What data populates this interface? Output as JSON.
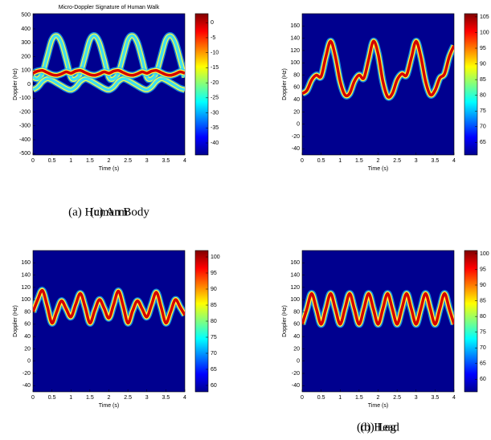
{
  "chart_data": [
    {
      "type": "spectrogram",
      "title": "Micro-Doppler Signature of Human Walk",
      "xlabel": "Time (s)",
      "ylabel": "Doppler (Hz)",
      "caption": "(a) Human Body",
      "xlim": [
        0,
        4
      ],
      "xticks": [
        0,
        0.5,
        1,
        1.5,
        2,
        2.5,
        3,
        3.5,
        4
      ],
      "ylim": [
        -510,
        510
      ],
      "yticks": [
        -500,
        -400,
        -300,
        -200,
        -100,
        0,
        100,
        200,
        300,
        400,
        500
      ],
      "clim": [
        -44,
        3
      ],
      "cticks": [
        0,
        -5,
        -10,
        -15,
        -20,
        -25,
        -30,
        -35,
        -40
      ],
      "x": [
        0,
        0.125,
        0.25,
        0.375,
        0.5,
        0.625,
        0.75,
        0.875,
        1,
        1.125,
        1.25,
        1.375,
        1.5,
        1.625,
        1.75,
        1.875,
        2,
        2.125,
        2.25,
        2.375,
        2.5,
        2.625,
        2.75,
        2.875,
        3,
        3.125,
        3.25,
        3.375,
        3.5,
        3.625,
        3.75,
        3.875,
        4
      ],
      "series": [
        {
          "color": "#40e0f0",
          "values": [
            50,
            40,
            80,
            200,
            320,
            350,
            300,
            180,
            50,
            40,
            80,
            200,
            320,
            350,
            300,
            180,
            50,
            40,
            80,
            200,
            320,
            350,
            300,
            180,
            50,
            40,
            80,
            200,
            320,
            350,
            300,
            180,
            50
          ]
        },
        {
          "color": "#40e0f0",
          "values": [
            -40,
            -20,
            20,
            40,
            30,
            10,
            -10,
            -30,
            -40,
            -20,
            20,
            40,
            30,
            10,
            -10,
            -30,
            -40,
            -20,
            20,
            40,
            30,
            10,
            -10,
            -30,
            -40,
            -20,
            20,
            40,
            30,
            10,
            -10,
            -30,
            -40
          ]
        },
        {
          "color": "#d40000",
          "values": [
            80,
            95,
            100,
            85,
            70,
            65,
            75,
            90,
            80,
            95,
            100,
            85,
            70,
            65,
            75,
            90,
            80,
            95,
            100,
            85,
            70,
            65,
            75,
            90,
            80,
            95,
            100,
            85,
            70,
            65,
            75,
            90,
            80
          ]
        }
      ]
    },
    {
      "type": "spectrogram",
      "xlabel": "Time (s)",
      "ylabel": "Doppler (Hz)",
      "caption": "(b) Leg",
      "xlim": [
        0,
        4
      ],
      "xticks": [
        0,
        0.5,
        1,
        1.5,
        2,
        2.5,
        3,
        3.5,
        4
      ],
      "ylim": [
        -50,
        180
      ],
      "yticks": [
        -40,
        -20,
        0,
        20,
        40,
        60,
        80,
        100,
        120,
        140,
        160
      ],
      "clim": [
        61,
        106
      ],
      "cticks": [
        65,
        70,
        75,
        80,
        85,
        90,
        95,
        100,
        105
      ],
      "x": [
        0,
        0.125,
        0.25,
        0.375,
        0.5,
        0.625,
        0.75,
        0.875,
        1,
        1.125,
        1.25,
        1.375,
        1.5,
        1.625,
        1.75,
        1.875,
        2,
        2.125,
        2.25,
        2.375,
        2.5,
        2.625,
        2.75,
        2.875,
        3,
        3.125,
        3.25,
        3.375,
        3.5,
        3.625,
        3.75,
        3.875,
        4
      ],
      "series": [
        {
          "color": "#d40000",
          "values": [
            50,
            55,
            72,
            80,
            78,
            110,
            135,
            110,
            70,
            48,
            50,
            70,
            80,
            75,
            105,
            135,
            115,
            70,
            45,
            50,
            72,
            82,
            80,
            108,
            135,
            110,
            70,
            48,
            55,
            75,
            82,
            110,
            128
          ]
        }
      ]
    },
    {
      "type": "spectrogram",
      "xlabel": "Time (s)",
      "ylabel": "Doppler (Hz)",
      "caption": "(c) Arm",
      "xlim": [
        0,
        4
      ],
      "xticks": [
        0,
        0.5,
        1,
        1.5,
        2,
        2.5,
        3,
        3.5,
        4
      ],
      "ylim": [
        -50,
        180
      ],
      "yticks": [
        -40,
        -20,
        0,
        20,
        40,
        60,
        80,
        100,
        120,
        140,
        160
      ],
      "clim": [
        58,
        102
      ],
      "cticks": [
        60,
        65,
        70,
        75,
        80,
        85,
        90,
        95,
        100
      ],
      "x": [
        0,
        0.125,
        0.25,
        0.375,
        0.5,
        0.625,
        0.75,
        0.875,
        1,
        1.125,
        1.25,
        1.375,
        1.5,
        1.625,
        1.75,
        1.875,
        2,
        2.125,
        2.25,
        2.375,
        2.5,
        2.625,
        2.75,
        2.875,
        3,
        3.125,
        3.25,
        3.375,
        3.5,
        3.625,
        3.75,
        3.875,
        4
      ],
      "series": [
        {
          "color": "#d40000",
          "values": [
            80,
            100,
            115,
            90,
            62,
            80,
            98,
            85,
            72,
            92,
            110,
            88,
            62,
            82,
            100,
            86,
            70,
            92,
            114,
            90,
            62,
            82,
            98,
            85,
            72,
            92,
            112,
            88,
            62,
            80,
            100,
            88,
            75
          ]
        }
      ]
    },
    {
      "type": "spectrogram",
      "xlabel": "Time (s)",
      "ylabel": "Doppler (Hz)",
      "caption": "(d) Head",
      "xlim": [
        0,
        4
      ],
      "xticks": [
        0,
        0.5,
        1,
        1.5,
        2,
        2.5,
        3,
        3.5,
        4
      ],
      "ylim": [
        -50,
        180
      ],
      "yticks": [
        -40,
        -20,
        0,
        20,
        40,
        60,
        80,
        100,
        120,
        140,
        160
      ],
      "clim": [
        56,
        101
      ],
      "cticks": [
        60,
        65,
        70,
        75,
        80,
        85,
        90,
        95,
        100
      ],
      "x": [
        0,
        0.125,
        0.25,
        0.375,
        0.5,
        0.625,
        0.75,
        0.875,
        1,
        1.125,
        1.25,
        1.375,
        1.5,
        1.625,
        1.75,
        1.875,
        2,
        2.125,
        2.25,
        2.375,
        2.5,
        2.625,
        2.75,
        2.875,
        3,
        3.125,
        3.25,
        3.375,
        3.5,
        3.625,
        3.75,
        3.875,
        4
      ],
      "series": [
        {
          "color": "#d40000",
          "values": [
            60,
            85,
            110,
            85,
            60,
            85,
            110,
            85,
            60,
            85,
            110,
            85,
            60,
            85,
            110,
            85,
            60,
            85,
            110,
            85,
            60,
            85,
            110,
            85,
            60,
            85,
            110,
            85,
            60,
            85,
            110,
            85,
            60
          ]
        }
      ]
    }
  ]
}
